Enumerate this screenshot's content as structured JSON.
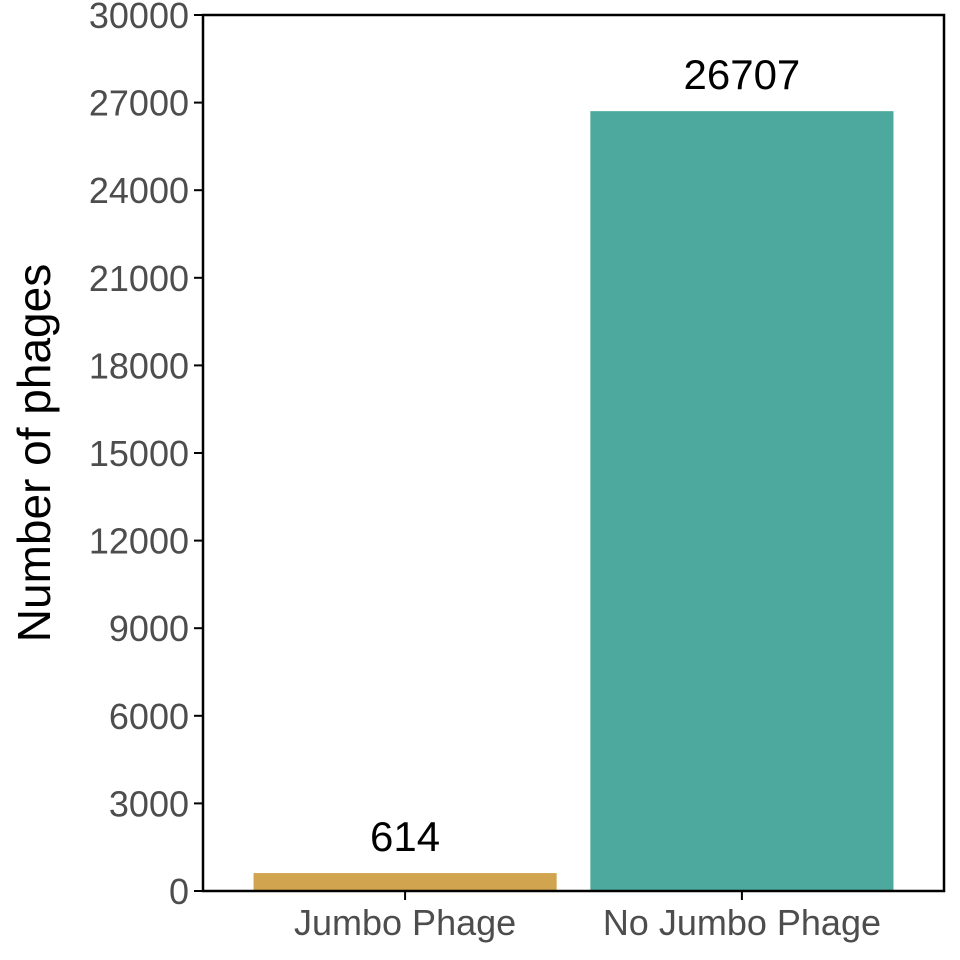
{
  "chart_data": {
    "type": "bar",
    "title": "",
    "xlabel": "",
    "ylabel": "Number of phages",
    "categories": [
      "Jumbo Phage",
      "No Jumbo Phage"
    ],
    "values": [
      614,
      26707
    ],
    "data_labels": [
      "614",
      "26707"
    ],
    "colors": [
      "#D1A550",
      "#4DA89D"
    ],
    "ylim": [
      0,
      30000
    ],
    "yticks": [
      0,
      3000,
      6000,
      9000,
      12000,
      15000,
      18000,
      21000,
      24000,
      27000,
      30000
    ],
    "grid": false,
    "legend": "none"
  }
}
